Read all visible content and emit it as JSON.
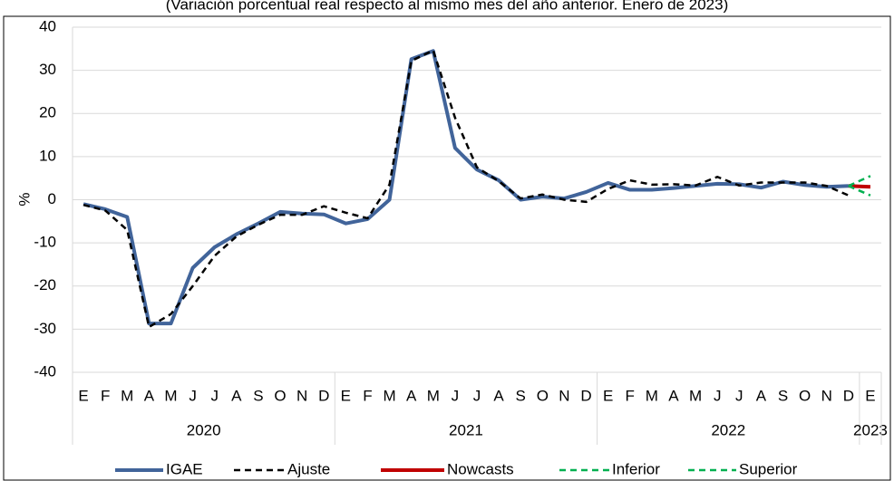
{
  "chart_data": {
    "type": "line",
    "subtitle": "(Variación porcentual real respecto al mismo mes del año anterior. Enero de 2023)",
    "y_label": "%",
    "categories": [
      "E",
      "F",
      "M",
      "A",
      "M",
      "J",
      "J",
      "A",
      "S",
      "O",
      "N",
      "D",
      "E",
      "F",
      "M",
      "A",
      "M",
      "J",
      "J",
      "A",
      "S",
      "O",
      "N",
      "D",
      "E",
      "F",
      "M",
      "A",
      "M",
      "J",
      "J",
      "A",
      "S",
      "O",
      "N",
      "D",
      "E"
    ],
    "year_groups": [
      {
        "name": "2020",
        "count": 12
      },
      {
        "name": "2021",
        "count": 12
      },
      {
        "name": "2022",
        "count": 12
      },
      {
        "name": "2023",
        "count": 1
      }
    ],
    "series": [
      {
        "name": "IGAE",
        "color": "#41649a",
        "width": 4,
        "dashed": false,
        "values": [
          -1.0,
          -2.2,
          -4.0,
          -28.7,
          -28.7,
          -15.8,
          -11.0,
          -8.0,
          -5.5,
          -2.8,
          -3.2,
          -3.4,
          -5.5,
          -4.5,
          0.0,
          32.6,
          34.5,
          12.0,
          7.0,
          4.5,
          0.0,
          0.7,
          0.3,
          1.8,
          3.9,
          2.3,
          2.3,
          2.7,
          3.2,
          3.7,
          3.6,
          2.8,
          4.2,
          3.4,
          3.0,
          3.2,
          null
        ]
      },
      {
        "name": "Ajuste",
        "color": "#000000",
        "width": 2.5,
        "dashed": true,
        "values": [
          -1.2,
          -2.5,
          -7.0,
          -29.5,
          -26.5,
          -20.0,
          -13.0,
          -8.5,
          -5.8,
          -3.5,
          -3.5,
          -1.5,
          -3.0,
          -4.3,
          3.5,
          32.2,
          34.6,
          19.0,
          7.5,
          4.3,
          0.3,
          1.2,
          0.0,
          -0.5,
          2.5,
          4.5,
          3.5,
          3.6,
          3.3,
          5.3,
          3.3,
          4.0,
          4.0,
          4.0,
          3.2,
          1.0,
          null
        ]
      },
      {
        "name": "Nowcasts",
        "color": "#c00000",
        "width": 4,
        "dashed": false,
        "values": [
          null,
          null,
          null,
          null,
          null,
          null,
          null,
          null,
          null,
          null,
          null,
          null,
          null,
          null,
          null,
          null,
          null,
          null,
          null,
          null,
          null,
          null,
          null,
          null,
          null,
          null,
          null,
          null,
          null,
          null,
          null,
          null,
          null,
          null,
          null,
          3.2,
          3.0
        ]
      },
      {
        "name": "Inferior",
        "color": "#00b050",
        "width": 2.5,
        "dashed": true,
        "values": [
          null,
          null,
          null,
          null,
          null,
          null,
          null,
          null,
          null,
          null,
          null,
          null,
          null,
          null,
          null,
          null,
          null,
          null,
          null,
          null,
          null,
          null,
          null,
          null,
          null,
          null,
          null,
          null,
          null,
          null,
          null,
          null,
          null,
          null,
          null,
          3.2,
          1.0
        ]
      },
      {
        "name": "Superior",
        "color": "#00b050",
        "width": 2.5,
        "dashed": true,
        "values": [
          null,
          null,
          null,
          null,
          null,
          null,
          null,
          null,
          null,
          null,
          null,
          null,
          null,
          null,
          null,
          null,
          null,
          null,
          null,
          null,
          null,
          null,
          null,
          null,
          null,
          null,
          null,
          null,
          null,
          null,
          null,
          null,
          null,
          null,
          null,
          3.2,
          5.5
        ]
      }
    ],
    "ylim": [
      -40,
      40
    ],
    "yticks": [
      -40,
      -30,
      -20,
      -10,
      0,
      10,
      20,
      30,
      40
    ],
    "grid": true
  }
}
